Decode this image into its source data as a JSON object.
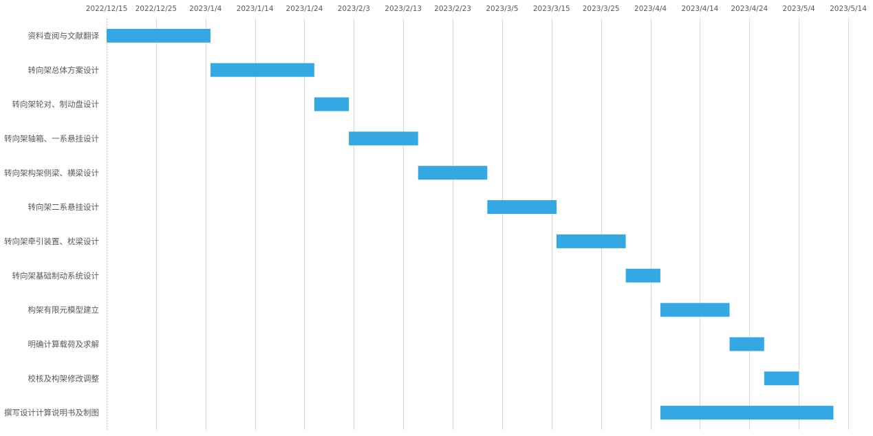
{
  "chart_data": {
    "type": "gantt",
    "title": "",
    "x_axis": {
      "position": "top",
      "min": "2022/12/15",
      "max": "2023/5/14",
      "tick_interval_days": 10,
      "ticks": [
        "2022/12/15",
        "2022/12/25",
        "2023/1/4",
        "2023/1/14",
        "2023/1/24",
        "2023/2/3",
        "2023/2/13",
        "2023/2/23",
        "2023/3/5",
        "2023/3/15",
        "2023/3/25",
        "2023/4/4",
        "2023/4/14",
        "2023/4/24",
        "2023/5/4",
        "2023/5/14"
      ],
      "grid": true
    },
    "bar_color": "#34A8E2",
    "tasks": [
      {
        "name": "资料查阅与文献翻译",
        "start": "2022/12/15",
        "end": "2023/1/5"
      },
      {
        "name": "转向架总体方案设计",
        "start": "2023/1/5",
        "end": "2023/1/26"
      },
      {
        "name": "转向架轮对、制动盘设计",
        "start": "2023/1/26",
        "end": "2023/2/2"
      },
      {
        "name": "转向架轴箱、一系悬挂设计",
        "start": "2023/2/2",
        "end": "2023/2/16"
      },
      {
        "name": "转向架构架侧梁、横梁设计",
        "start": "2023/2/16",
        "end": "2023/3/2"
      },
      {
        "name": "转向架二系悬挂设计",
        "start": "2023/3/2",
        "end": "2023/3/16"
      },
      {
        "name": "转向架牵引装置、枕梁设计",
        "start": "2023/3/16",
        "end": "2023/3/30"
      },
      {
        "name": "转向架基础制动系统设计",
        "start": "2023/3/30",
        "end": "2023/4/6"
      },
      {
        "name": "构架有限元模型建立",
        "start": "2023/4/6",
        "end": "2023/4/20"
      },
      {
        "name": "明确计算载荷及求解",
        "start": "2023/4/20",
        "end": "2023/4/27"
      },
      {
        "name": "校核及构架修改调整",
        "start": "2023/4/27",
        "end": "2023/5/4"
      },
      {
        "name": "撰写设计计算说明书及制图",
        "start": "2023/4/6",
        "end": "2023/5/11"
      }
    ]
  }
}
